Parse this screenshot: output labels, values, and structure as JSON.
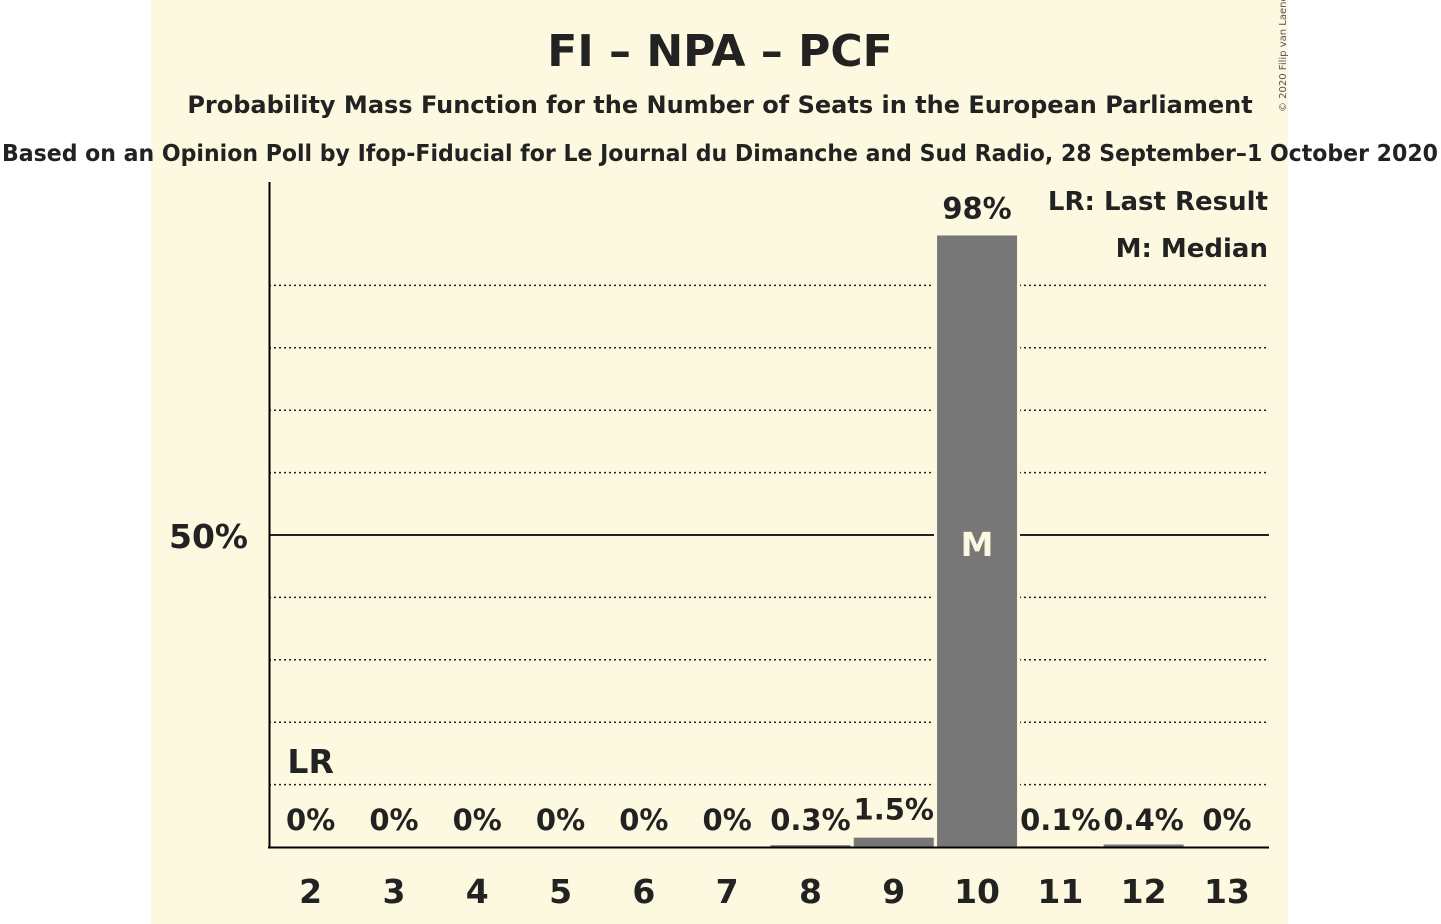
{
  "chart_data": {
    "type": "bar",
    "title": "FI – NPA – PCF",
    "subtitle": "Probability Mass Function for the Number of Seats in the European Parliament",
    "source": "Based on an Opinion Poll by Ifop-Fiducial for Le Journal du Dimanche and Sud Radio, 28 September–1 October 2020",
    "copyright": "© 2020 Filip van Laenen",
    "categories": [
      "2",
      "3",
      "4",
      "5",
      "6",
      "7",
      "8",
      "9",
      "10",
      "11",
      "12",
      "13"
    ],
    "values": [
      0,
      0,
      0,
      0,
      0,
      0,
      0.3,
      1.5,
      98,
      0.1,
      0.4,
      0
    ],
    "value_labels": [
      "0%",
      "0%",
      "0%",
      "0%",
      "0%",
      "0%",
      "0.3%",
      "1.5%",
      "98%",
      "0.1%",
      "0.4%",
      "0%"
    ],
    "ylim": [
      0,
      100
    ],
    "y_tick_label": "50%",
    "y_tick_value": 50,
    "last_result_seat": "2",
    "last_result_marker": "LR",
    "median_seat": "10",
    "median_marker": "M",
    "legend": [
      "LR: Last Result",
      "M: Median"
    ],
    "legend_position": "top-right",
    "grid": "dotted every 10%, solid at 50%",
    "colors": {
      "bar": "#777777",
      "background": "#fdf9e1",
      "text": "#222222"
    }
  }
}
